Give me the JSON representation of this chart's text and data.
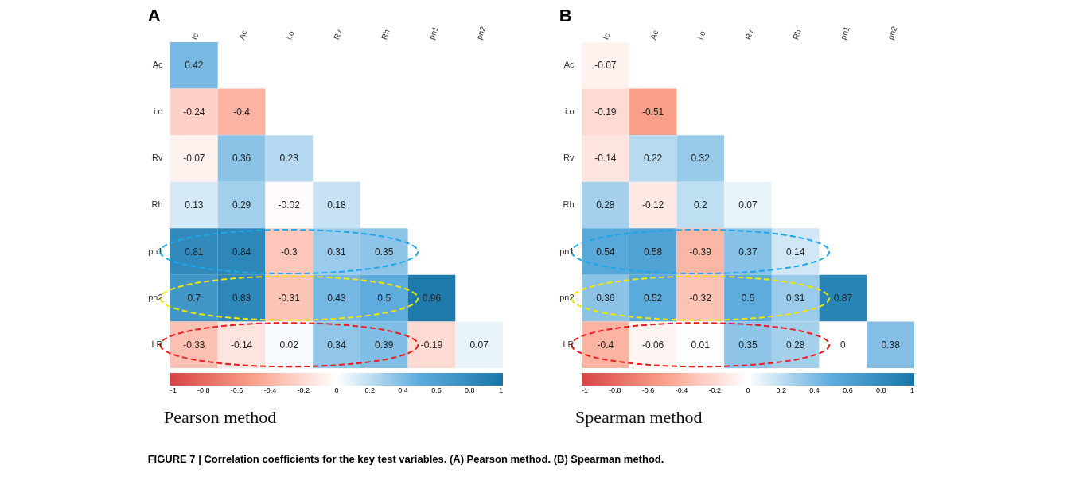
{
  "chart_data": [
    {
      "type": "heatmap",
      "title": "A",
      "categories": [
        "Ic",
        "Ac",
        "i.o",
        "Rv",
        "Rh",
        "pn1",
        "pn2"
      ],
      "y_categories": [
        "Ac",
        "i.o",
        "Rv",
        "Rh",
        "pn1",
        "pn2",
        "LR"
      ],
      "cells": [
        [
          0.42,
          null,
          null,
          null,
          null,
          null,
          null
        ],
        [
          -0.24,
          -0.4,
          null,
          null,
          null,
          null,
          null
        ],
        [
          -0.07,
          0.36,
          0.23,
          null,
          null,
          null,
          null
        ],
        [
          0.13,
          0.29,
          -0.02,
          0.18,
          null,
          null,
          null
        ],
        [
          0.81,
          0.84,
          -0.3,
          0.31,
          0.35,
          null,
          null
        ],
        [
          0.7,
          0.83,
          -0.31,
          0.43,
          0.5,
          0.96,
          null
        ],
        [
          -0.33,
          -0.14,
          0.02,
          0.34,
          0.39,
          -0.19,
          0.07
        ]
      ],
      "clim": [
        -1,
        1
      ],
      "cticks": [
        -1,
        -0.8,
        -0.6,
        -0.4,
        -0.2,
        0,
        0.2,
        0.4,
        0.6,
        0.8,
        1
      ],
      "data_labels": true,
      "annotations": [
        "Pearson method"
      ]
    },
    {
      "type": "heatmap",
      "title": "B",
      "categories": [
        "Ic",
        "Ac",
        "i.o",
        "Rv",
        "Rh",
        "pn1",
        "pn2"
      ],
      "y_categories": [
        "Ac",
        "i.o",
        "Rv",
        "Rh",
        "pn1",
        "pn2",
        "LR"
      ],
      "cells": [
        [
          -0.07,
          null,
          null,
          null,
          null,
          null,
          null
        ],
        [
          -0.19,
          -0.51,
          null,
          null,
          null,
          null,
          null
        ],
        [
          -0.14,
          0.22,
          0.32,
          null,
          null,
          null,
          null
        ],
        [
          0.28,
          -0.12,
          0.2,
          0.07,
          null,
          null,
          null
        ],
        [
          0.54,
          0.58,
          -0.39,
          0.37,
          0.14,
          null,
          null
        ],
        [
          0.36,
          0.52,
          -0.32,
          0.5,
          0.31,
          0.87,
          null
        ],
        [
          -0.4,
          -0.06,
          0.01,
          0.35,
          0.28,
          0,
          0.38
        ]
      ],
      "clim": [
        -1,
        1
      ],
      "cticks": [
        -1,
        -0.8,
        -0.6,
        -0.4,
        -0.2,
        0,
        0.2,
        0.4,
        0.6,
        0.8,
        1
      ],
      "data_labels": true,
      "annotations": [
        "Spearman method",
        "FIGURE 7 | Correlation coefficients for the key test variables. (A) Pearson method. (B) Spearman method."
      ]
    }
  ]
}
